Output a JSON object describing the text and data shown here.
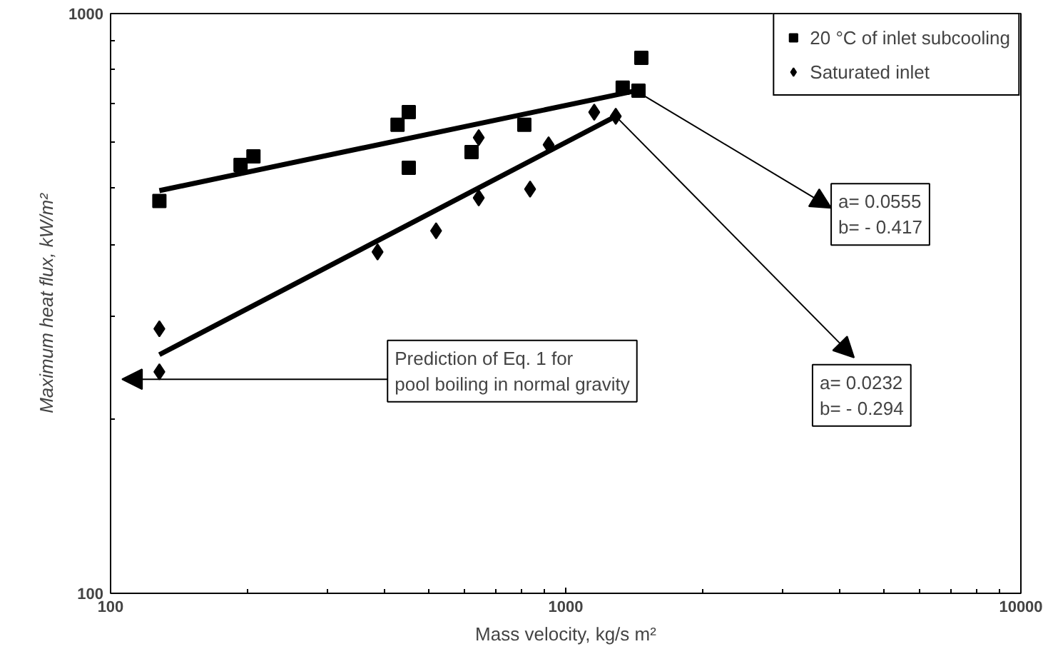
{
  "chart_data": {
    "type": "scatter",
    "xlabel": "Mass velocity, kg/s m²",
    "ylabel": "Maximum heat flux, kW/m²",
    "log": "xy",
    "xlim": [
      100,
      10000
    ],
    "ylim": [
      100,
      1000
    ],
    "xticks": [
      100,
      1000,
      10000
    ],
    "yticks": [
      100,
      1000
    ],
    "grid": false,
    "legend": "top right",
    "series": [
      {
        "name": "20 °C of inlet subcooling",
        "marker": "square",
        "color": "#000000",
        "x": [
          128,
          193,
          206,
          427,
          452,
          452,
          621,
          811,
          1334,
          1445,
          1466
        ],
        "values": [
          475,
          548,
          567,
          643,
          676,
          542,
          577,
          643,
          745,
          736,
          839
        ]
      },
      {
        "name": "Saturated inlet",
        "marker": "diamond",
        "color": "#000000",
        "x": [
          128,
          128,
          386,
          519,
          644,
          644,
          835,
          917,
          1155,
          1288
        ],
        "values": [
          286,
          241,
          388,
          422,
          481,
          611,
          498,
          594,
          676,
          665
        ]
      },
      {
        "type": "line",
        "color": "#000000",
        "x": [
          128,
          1425
        ],
        "values": [
          495,
          736
        ]
      },
      {
        "type": "line",
        "color": "#000000",
        "x": [
          128,
          1288
        ],
        "values": [
          258,
          665
        ]
      }
    ],
    "annotations": [
      {
        "text": "a= 0.0555\nb= - 0.417",
        "x": 1425,
        "y": 736
      },
      {
        "text": "a= 0.0232\nb= - 0.294",
        "x": 1288,
        "y": 665
      },
      "Prediction of Eq. 1 for\npool boiling in normal gravity"
    ]
  }
}
